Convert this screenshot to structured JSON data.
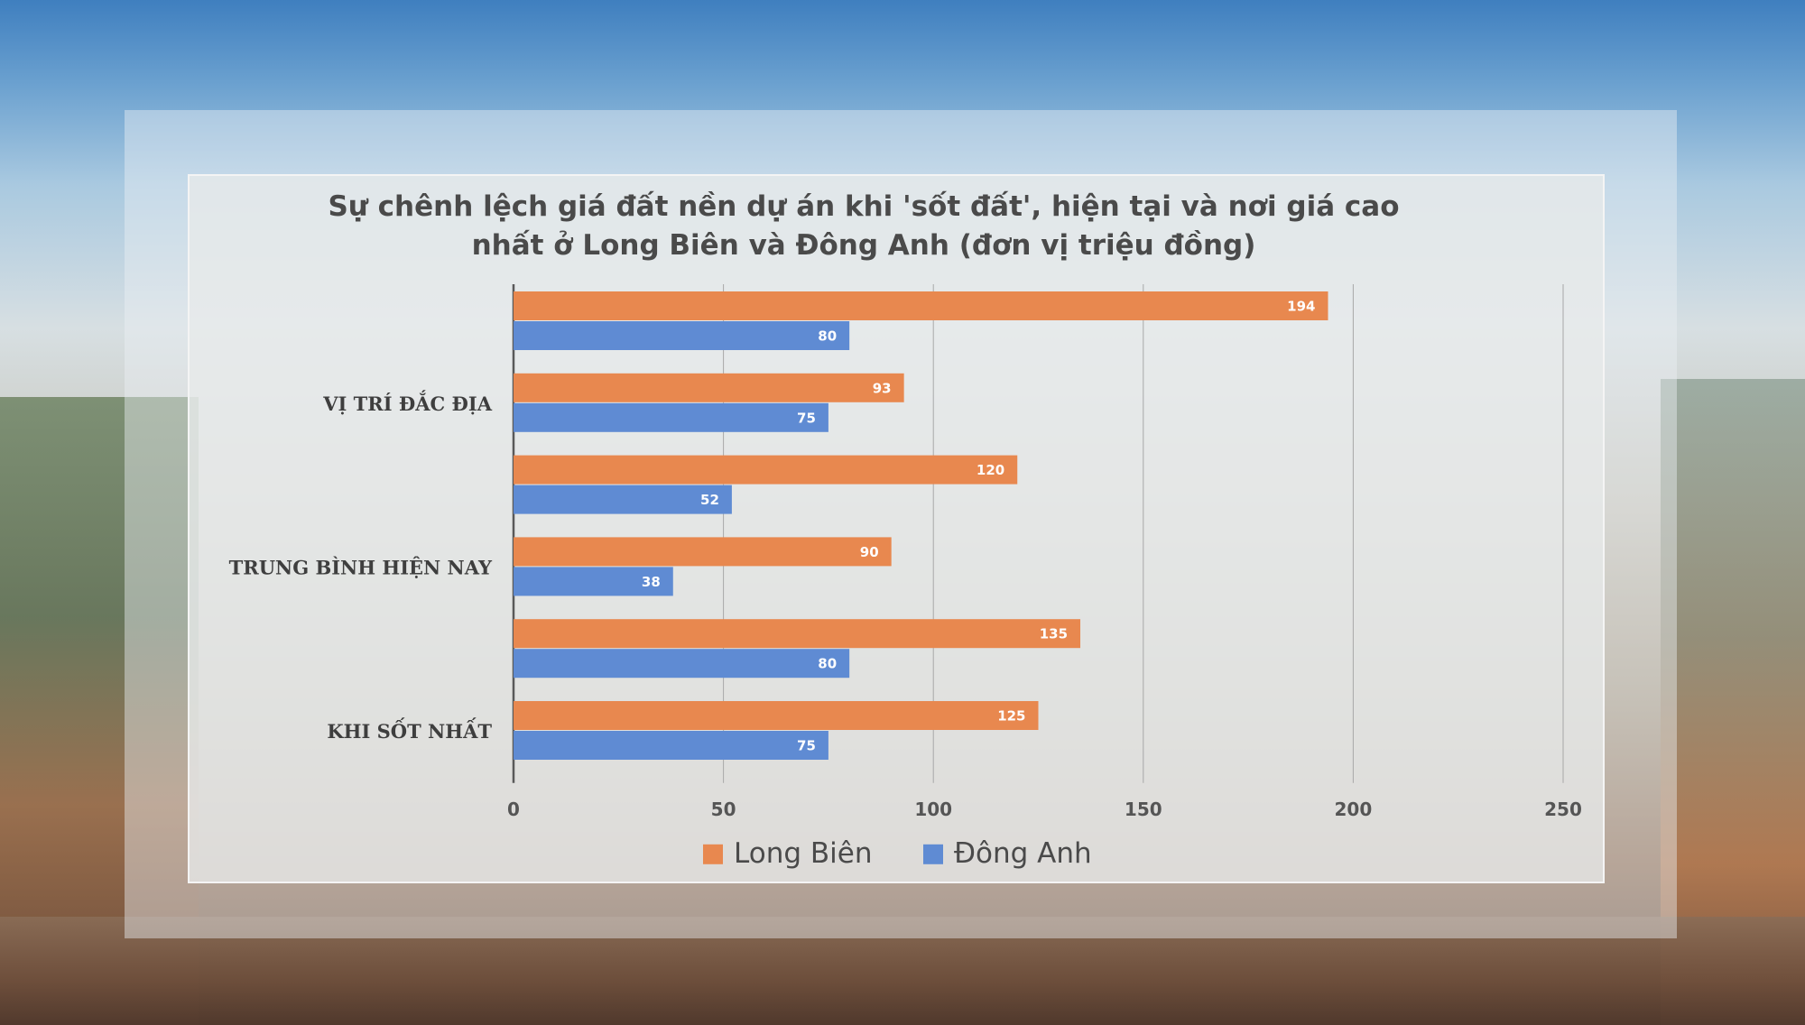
{
  "colors": {
    "long_bien": "#e8884f",
    "dong_anh": "#5f8bd3",
    "grid": "#a8a8a8",
    "axis": "#595959"
  },
  "chart_data": {
    "type": "bar",
    "orientation": "horizontal",
    "title_lines": [
      "Sự chênh lệch giá đất nền dự án khi 'sốt đất', hiện tại và nơi giá cao",
      "nhất ở Long Biên và Đông Anh (đơn vị triệu đồng)"
    ],
    "category_labels": [
      "VỊ TRÍ ĐẮC ĐỊA",
      "TRUNG BÌNH HIỆN NAY",
      "KHI SỐT NHẤT"
    ],
    "groups": [
      {
        "label": "",
        "long_bien": 194,
        "dong_anh": 80
      },
      {
        "label": "VỊ TRÍ ĐẮC ĐỊA",
        "long_bien": 93,
        "dong_anh": 75
      },
      {
        "label": "",
        "long_bien": 120,
        "dong_anh": 52
      },
      {
        "label": "TRUNG BÌNH HIỆN NAY",
        "long_bien": 90,
        "dong_anh": 38
      },
      {
        "label": "",
        "long_bien": 135,
        "dong_anh": 80
      },
      {
        "label": "KHI SỐT NHẤT",
        "long_bien": 125,
        "dong_anh": 75
      }
    ],
    "series": [
      {
        "name": "Long Biên",
        "values": [
          194,
          93,
          120,
          90,
          135,
          125
        ]
      },
      {
        "name": "Đông Anh",
        "values": [
          80,
          75,
          52,
          38,
          80,
          75
        ]
      }
    ],
    "xlim": [
      0,
      250
    ],
    "xticks": [
      0,
      50,
      100,
      150,
      200,
      250
    ],
    "grid": true,
    "legend": "bottom-center"
  }
}
